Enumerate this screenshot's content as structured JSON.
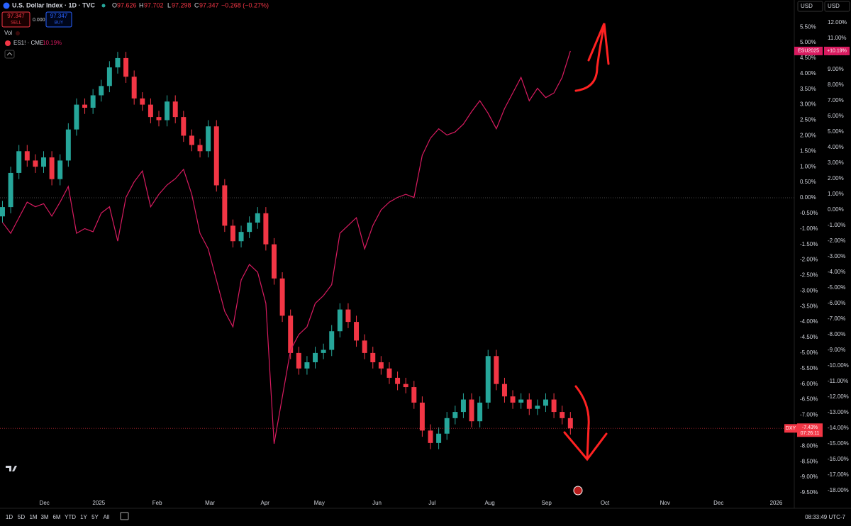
{
  "header": {
    "title": "U.S. Dollar Index · 1D · TVC",
    "o_label": "O",
    "open": "97.626",
    "h_label": "H",
    "high": "97.702",
    "l_label": "L",
    "low": "97.298",
    "c_label": "C",
    "close": "97.347",
    "change": "−0.268 (−0.27%)",
    "sell_price": "97.347",
    "sell_label": "SELL",
    "spread": "0.000",
    "buy_price": "97.347",
    "buy_label": "BUY",
    "vol_label": "Vol",
    "currency_left": "USD",
    "currency_right": "USD"
  },
  "chart_data": {
    "type": "candlestick",
    "title": "U.S. Dollar Index · 1D · TVC",
    "xlim": [
      -0.3,
      96.2
    ],
    "xticks": [
      {
        "value": 5.1,
        "label": "Dec"
      },
      {
        "value": 11.7,
        "label": "2025"
      },
      {
        "value": 18.8,
        "label": "Feb"
      },
      {
        "value": 25.2,
        "label": "Mar"
      },
      {
        "value": 31.9,
        "label": "Apr"
      },
      {
        "value": 38.5,
        "label": "May"
      },
      {
        "value": 45.5,
        "label": "Jun"
      },
      {
        "value": 52.2,
        "label": "Jul"
      },
      {
        "value": 59.2,
        "label": "Aug"
      },
      {
        "value": 66.1,
        "label": "Sep"
      },
      {
        "value": 73.2,
        "label": "Oct"
      },
      {
        "value": 80.5,
        "label": "Nov"
      },
      {
        "value": 87.0,
        "label": "Dec"
      },
      {
        "value": 94.0,
        "label": "2026"
      }
    ],
    "ylim": [
      -9.73,
      5.96
    ],
    "yticks": [
      {
        "value": 5.5,
        "label": "5.50%"
      },
      {
        "value": 5,
        "label": "5.00%"
      },
      {
        "value": 4.5,
        "label": "4.50%"
      },
      {
        "value": 4,
        "label": "4.00%"
      },
      {
        "value": 3.5,
        "label": "3.50%"
      },
      {
        "value": 3,
        "label": "3.00%"
      },
      {
        "value": 2.5,
        "label": "2.50%"
      },
      {
        "value": 2,
        "label": "2.00%"
      },
      {
        "value": 1.5,
        "label": "1.50%"
      },
      {
        "value": 1,
        "label": "1.00%"
      },
      {
        "value": 0.5,
        "label": "0.50%"
      },
      {
        "value": 0,
        "label": "0.00%"
      },
      {
        "value": -0.5,
        "label": "-0.50%"
      },
      {
        "value": -1,
        "label": "-1.00%"
      },
      {
        "value": -1.5,
        "label": "-1.50%"
      },
      {
        "value": -2,
        "label": "-2.00%"
      },
      {
        "value": -2.5,
        "label": "-2.50%"
      },
      {
        "value": -3,
        "label": "-3.00%"
      },
      {
        "value": -3.5,
        "label": "-3.50%"
      },
      {
        "value": -4,
        "label": "-4.00%"
      },
      {
        "value": -4.5,
        "label": "-4.50%"
      },
      {
        "value": -5,
        "label": "-5.00%"
      },
      {
        "value": -5.5,
        "label": "-5.50%"
      },
      {
        "value": -6,
        "label": "-6.00%"
      },
      {
        "value": -6.5,
        "label": "-6.50%"
      },
      {
        "value": -7,
        "label": "-7.00%"
      },
      {
        "value": -7.5,
        "label": "-7.50%"
      },
      {
        "value": -8,
        "label": "-8.00%"
      },
      {
        "value": -8.5,
        "label": "-8.50%"
      },
      {
        "value": -9,
        "label": "-9.00%"
      },
      {
        "value": -9.5,
        "label": "-9.50%"
      }
    ],
    "y2lim": [
      -18.59,
      12.64
    ],
    "y2ticks": [
      {
        "value": 12,
        "label": "12.00%"
      },
      {
        "value": 11,
        "label": "11.00%"
      },
      {
        "value": 10,
        "label": "10.00%"
      },
      {
        "value": 9,
        "label": "9.00%"
      },
      {
        "value": 8,
        "label": "8.00%"
      },
      {
        "value": 7,
        "label": "7.00%"
      },
      {
        "value": 6,
        "label": "6.00%"
      },
      {
        "value": 5,
        "label": "5.00%"
      },
      {
        "value": 4,
        "label": "4.00%"
      },
      {
        "value": 3,
        "label": "3.00%"
      },
      {
        "value": 2,
        "label": "2.00%"
      },
      {
        "value": 1,
        "label": "1.00%"
      },
      {
        "value": 0,
        "label": "0.00%"
      },
      {
        "value": -1,
        "label": "-1.00%"
      },
      {
        "value": -2,
        "label": "-2.00%"
      },
      {
        "value": -3,
        "label": "-3.00%"
      },
      {
        "value": -4,
        "label": "-4.00%"
      },
      {
        "value": -5,
        "label": "-5.00%"
      },
      {
        "value": -6,
        "label": "-6.00%"
      },
      {
        "value": -7,
        "label": "-7.00%"
      },
      {
        "value": -8,
        "label": "-8.00%"
      },
      {
        "value": -9,
        "label": "-9.00%"
      },
      {
        "value": -10,
        "label": "-10.00%"
      },
      {
        "value": -11,
        "label": "-11.00%"
      },
      {
        "value": -12,
        "label": "-12.00%"
      },
      {
        "value": -13,
        "label": "-13.00%"
      },
      {
        "value": -14,
        "label": "-14.00%"
      },
      {
        "value": -15,
        "label": "-15.00%"
      },
      {
        "value": -16,
        "label": "-16.00%"
      },
      {
        "value": -17,
        "label": "-17.00%"
      },
      {
        "value": -18,
        "label": "-18.00%"
      }
    ],
    "grid": false,
    "series": [
      {
        "tag": "DXY",
        "type": "candlestick",
        "up_color": "#26a69a",
        "down_color": "#f23645",
        "last_value_label": "-7.43%",
        "countdown": "07:26:11",
        "open": [
          -0.6,
          -0.3,
          0.8,
          1.5,
          1.2,
          1.0,
          1.3,
          0.6,
          1.2,
          2.2,
          3.0,
          2.9,
          3.3,
          3.6,
          4.2,
          4.5,
          3.9,
          3.2,
          3.0,
          2.6,
          2.5,
          3.1,
          2.6,
          2.0,
          1.7,
          1.5,
          2.3,
          0.4,
          -0.9,
          -1.4,
          -1.1,
          -0.8,
          -0.5,
          -1.5,
          -2.6,
          -3.8,
          -5.0,
          -5.5,
          -5.3,
          -5.0,
          -4.9,
          -4.3,
          -3.6,
          -4.0,
          -4.6,
          -5.0,
          -5.3,
          -5.5,
          -5.8,
          -6.0,
          -6.1,
          -6.6,
          -7.5,
          -7.9,
          -7.6,
          -7.1,
          -6.9,
          -6.5,
          -7.2,
          -6.6,
          -5.1,
          -6.0,
          -6.4,
          -6.6,
          -6.5,
          -6.8,
          -6.7,
          -6.5,
          -6.9,
          -7.1
        ],
        "high": [
          -0.1,
          1.0,
          1.7,
          1.7,
          1.4,
          1.5,
          1.5,
          1.4,
          2.4,
          3.2,
          3.2,
          3.5,
          3.8,
          4.4,
          4.7,
          4.7,
          4.1,
          3.4,
          3.2,
          2.8,
          3.3,
          3.3,
          2.8,
          2.2,
          1.9,
          2.5,
          2.5,
          0.6,
          -0.7,
          -0.9,
          -0.6,
          -0.3,
          -0.3,
          -1.3,
          -2.4,
          -3.6,
          -4.8,
          -5.1,
          -4.8,
          -4.7,
          -4.1,
          -3.4,
          -3.4,
          -3.8,
          -4.4,
          -4.8,
          -5.1,
          -5.3,
          -5.6,
          -5.8,
          -5.9,
          -6.4,
          -7.3,
          -7.4,
          -6.9,
          -6.7,
          -6.3,
          -6.3,
          -6.4,
          -4.9,
          -4.9,
          -5.8,
          -6.2,
          -6.3,
          -6.3,
          -6.5,
          -6.3,
          -6.3,
          -6.7,
          -6.9
        ],
        "low": [
          -0.8,
          -0.5,
          0.6,
          1.0,
          0.8,
          0.8,
          0.4,
          0.4,
          1.0,
          2.0,
          2.7,
          2.7,
          3.1,
          3.4,
          4.0,
          3.7,
          3.0,
          2.8,
          2.4,
          2.3,
          2.3,
          2.4,
          1.8,
          1.5,
          1.3,
          1.3,
          0.2,
          -1.1,
          -1.6,
          -1.6,
          -1.3,
          -1.0,
          -1.7,
          -2.8,
          -4.0,
          -5.2,
          -5.7,
          -5.7,
          -5.5,
          -5.2,
          -5.1,
          -4.5,
          -4.2,
          -4.8,
          -5.2,
          -5.5,
          -5.7,
          -6.0,
          -6.2,
          -6.3,
          -6.8,
          -7.7,
          -8.1,
          -8.1,
          -7.8,
          -7.3,
          -7.1,
          -7.4,
          -7.4,
          -6.8,
          -6.2,
          -6.6,
          -6.8,
          -6.8,
          -7.0,
          -7.0,
          -6.9,
          -7.1,
          -7.3,
          -7.63
        ],
        "close": [
          -0.3,
          0.8,
          1.5,
          1.2,
          1.0,
          1.3,
          0.6,
          1.2,
          2.2,
          3.0,
          2.9,
          3.3,
          3.6,
          4.2,
          4.5,
          3.9,
          3.2,
          3.0,
          2.6,
          2.5,
          3.1,
          2.6,
          2.0,
          1.7,
          1.5,
          2.3,
          0.4,
          -0.9,
          -1.4,
          -1.1,
          -0.8,
          -0.5,
          -1.5,
          -2.6,
          -3.8,
          -5.0,
          -5.5,
          -5.3,
          -5.0,
          -4.9,
          -4.3,
          -3.6,
          -4.0,
          -4.6,
          -5.0,
          -5.3,
          -5.5,
          -5.8,
          -6.0,
          -6.1,
          -6.6,
          -7.5,
          -7.9,
          -7.6,
          -7.1,
          -6.9,
          -6.5,
          -7.2,
          -6.6,
          -5.1,
          -6.0,
          -6.4,
          -6.6,
          -6.5,
          -6.8,
          -6.7,
          -6.5,
          -6.9,
          -7.1,
          -7.43
        ]
      },
      {
        "name": "ES1! · CME",
        "tag": "ESU2025",
        "type": "line",
        "axis": "y2",
        "color": "#d81b60",
        "legend_value": "10.19%",
        "last_value_label": "+10.19%",
        "values": [
          -0.8,
          -1.5,
          -0.5,
          0.5,
          0.2,
          0.4,
          -0.4,
          0.5,
          1.5,
          -1.5,
          -1.2,
          -1.4,
          -0.2,
          0.2,
          -2.0,
          0.8,
          1.8,
          2.5,
          0.2,
          1.0,
          1.6,
          2.0,
          2.6,
          1.0,
          -1.5,
          -2.5,
          -4.5,
          -6.5,
          -7.5,
          -4.5,
          -3.5,
          -4.0,
          -6.0,
          -15.0,
          -12.0,
          -9.0,
          -8.0,
          -7.5,
          -6.0,
          -5.5,
          -4.8,
          -1.5,
          -1.0,
          -0.5,
          -2.5,
          -1.0,
          0.0,
          0.5,
          0.8,
          1.0,
          0.8,
          3.5,
          4.6,
          5.2,
          4.8,
          5.0,
          5.5,
          6.3,
          7.0,
          6.2,
          5.2,
          6.5,
          7.5,
          8.5,
          7.0,
          7.8,
          7.2,
          7.5,
          8.5,
          10.19
        ]
      }
    ]
  },
  "toolbar": {
    "ranges": [
      "1D",
      "5D",
      "1M",
      "3M",
      "6M",
      "YTD",
      "1Y",
      "5Y",
      "All"
    ],
    "clock": "08:33:49 UTC-7"
  }
}
